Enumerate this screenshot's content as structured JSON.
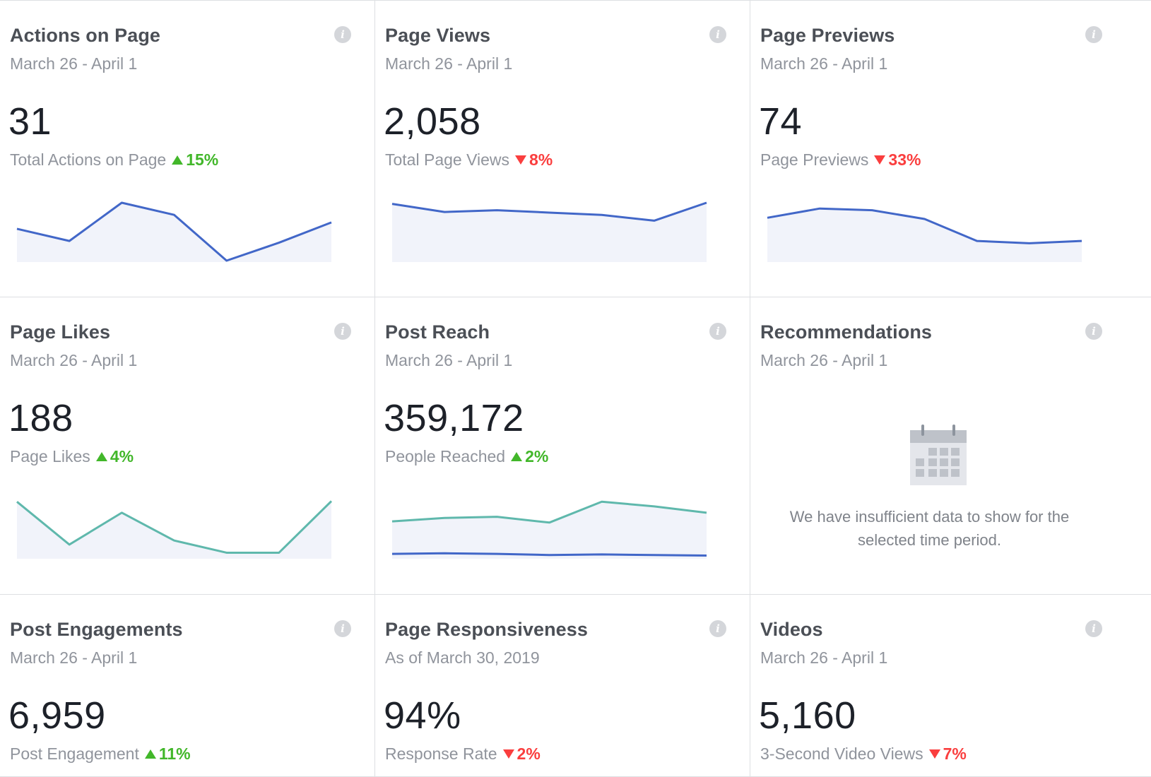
{
  "colors": {
    "line_blue": "#4267c8",
    "line_teal": "#5fb8ac",
    "fill": "#f1f3fa",
    "up": "#42b72a",
    "down": "#fa3e3e"
  },
  "cards": [
    {
      "title": "Actions on Page",
      "subtitle": "March 26 - April 1",
      "value": "31",
      "label": "Total Actions on Page",
      "change": "15%",
      "direction": "up",
      "series": [
        [
          55,
          34,
          100,
          79,
          0,
          31,
          66
        ]
      ],
      "series_colors": [
        "line_blue"
      ]
    },
    {
      "title": "Page Views",
      "subtitle": "March 26 - April 1",
      "value": "2,058",
      "label": "Total Page Views",
      "change": "8%",
      "direction": "down",
      "series": [
        [
          98,
          84,
          87,
          83,
          79,
          69,
          100
        ]
      ],
      "series_colors": [
        "line_blue"
      ]
    },
    {
      "title": "Page Previews",
      "subtitle": "March 26 - April 1",
      "value": "74",
      "label": "Page Previews",
      "change": "33%",
      "direction": "down",
      "series": [
        [
          74,
          90,
          87,
          72,
          34,
          30,
          34
        ]
      ],
      "series_colors": [
        "line_blue"
      ]
    },
    {
      "title": "Page Likes",
      "subtitle": "March 26 - April 1",
      "value": "188",
      "label": "Page Likes",
      "change": "4%",
      "direction": "up",
      "series": [
        [
          96,
          22,
          77,
          29,
          8,
          8,
          97
        ]
      ],
      "series_colors": [
        "line_teal"
      ]
    },
    {
      "title": "Post Reach",
      "subtitle": "March 26 - April 1",
      "value": "359,172",
      "label": "People Reached",
      "change": "2%",
      "direction": "up",
      "series": [
        [
          62,
          68,
          70,
          60,
          96,
          88,
          77
        ],
        [
          6,
          7,
          6,
          4,
          5,
          4,
          3
        ]
      ],
      "series_colors": [
        "line_teal",
        "line_blue"
      ]
    },
    {
      "title": "Recommendations",
      "subtitle": "March 26 - April 1",
      "empty": true,
      "empty_icon": "calendar-icon",
      "empty_message": "We have insufficient data to show for the selected time period."
    },
    {
      "title": "Post Engagements",
      "subtitle": "March 26 - April 1",
      "value": "6,959",
      "label": "Post Engagement",
      "change": "11%",
      "direction": "up"
    },
    {
      "title": "Page Responsiveness",
      "subtitle": "As of March 30, 2019",
      "value": "94%",
      "label": "Response Rate",
      "change": "2%",
      "direction": "down"
    },
    {
      "title": "Videos",
      "subtitle": "March 26 - April 1",
      "value": "5,160",
      "label": "3-Second Video Views",
      "change": "7%",
      "direction": "down"
    }
  ]
}
